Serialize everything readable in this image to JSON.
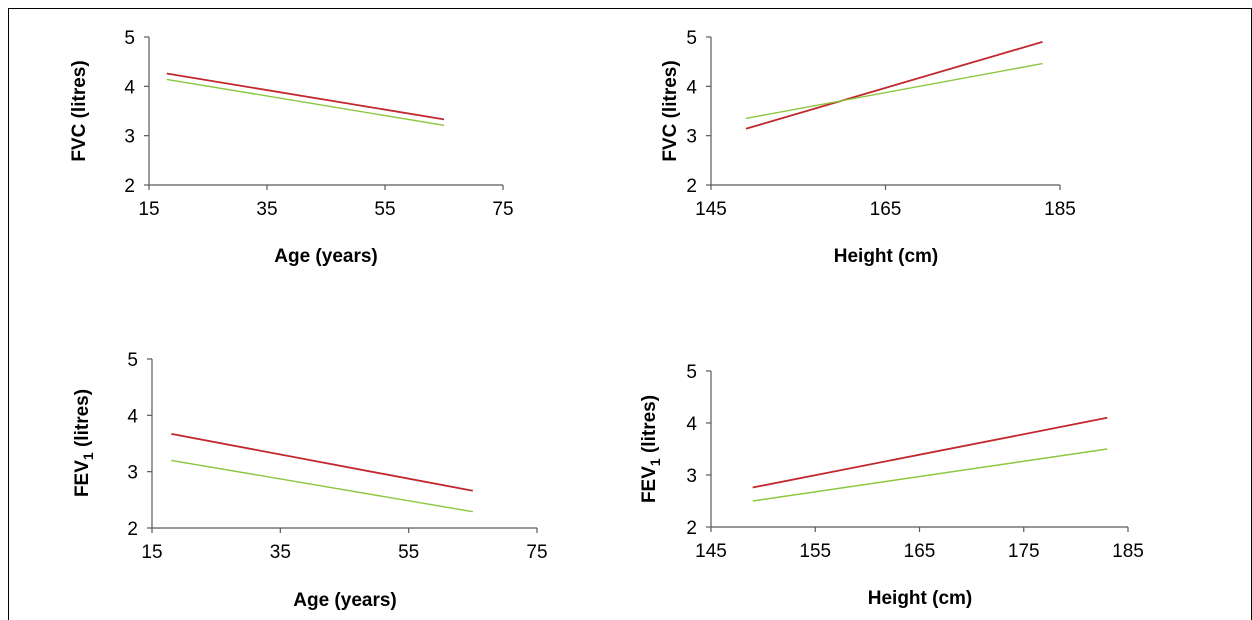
{
  "colors": {
    "series_red": "#c0282d",
    "series_green": "#8cc63f",
    "axis": "#595959"
  },
  "chart_data": [
    {
      "type": "line",
      "title": "",
      "xlabel": "Age (years)",
      "ylabel": "FVC (litres)",
      "ylabel_main": "FVC",
      "ylabel_sub": "",
      "ylabel_unit": "(litres)",
      "xlim": [
        15,
        75
      ],
      "ylim": [
        2,
        5
      ],
      "xticks": [
        15,
        35,
        55,
        75
      ],
      "yticks": [
        2,
        3,
        4,
        5
      ],
      "grid": false,
      "series": [
        {
          "color": "#c0282d",
          "x": [
            18,
            65
          ],
          "y": [
            4.26,
            3.33
          ]
        },
        {
          "color": "#8cc63f",
          "x": [
            18,
            65
          ],
          "y": [
            4.14,
            3.21
          ]
        }
      ]
    },
    {
      "type": "line",
      "title": "",
      "xlabel": "Height (cm)",
      "ylabel": "FVC (litres)",
      "ylabel_main": "FVC",
      "ylabel_sub": "",
      "ylabel_unit": "(litres)",
      "xlim": [
        145,
        185
      ],
      "ylim": [
        2,
        5
      ],
      "xticks": [
        145,
        165,
        185
      ],
      "yticks": [
        2,
        3,
        4,
        5
      ],
      "grid": false,
      "series": [
        {
          "color": "#c0282d",
          "x": [
            149,
            183
          ],
          "y": [
            3.14,
            4.9
          ]
        },
        {
          "color": "#8cc63f",
          "x": [
            149,
            183
          ],
          "y": [
            3.35,
            4.46
          ]
        }
      ]
    },
    {
      "type": "line",
      "title": "",
      "xlabel": "Age (years)",
      "ylabel": "FEV1 (litres)",
      "ylabel_main": "FEV",
      "ylabel_sub": "1",
      "ylabel_unit": "(litres)",
      "xlim": [
        15,
        75
      ],
      "ylim": [
        2,
        5
      ],
      "xticks": [
        15,
        35,
        55,
        75
      ],
      "yticks": [
        2,
        3,
        4,
        5
      ],
      "grid": false,
      "series": [
        {
          "color": "#c0282d",
          "x": [
            18,
            65
          ],
          "y": [
            3.67,
            2.66
          ]
        },
        {
          "color": "#8cc63f",
          "x": [
            18,
            65
          ],
          "y": [
            3.2,
            2.29
          ]
        }
      ]
    },
    {
      "type": "line",
      "title": "",
      "xlabel": "Height (cm)",
      "ylabel": "FEV1 (litres)",
      "ylabel_main": "FEV",
      "ylabel_sub": "1",
      "ylabel_unit": "(litres)",
      "xlim": [
        145,
        185
      ],
      "ylim": [
        2,
        5
      ],
      "xticks": [
        145,
        155,
        165,
        175,
        185
      ],
      "yticks": [
        2,
        3,
        4,
        5
      ],
      "grid": false,
      "series": [
        {
          "color": "#c0282d",
          "x": [
            149,
            183
          ],
          "y": [
            2.76,
            4.1
          ]
        },
        {
          "color": "#8cc63f",
          "x": [
            149,
            183
          ],
          "y": [
            2.5,
            3.5
          ]
        }
      ]
    }
  ]
}
